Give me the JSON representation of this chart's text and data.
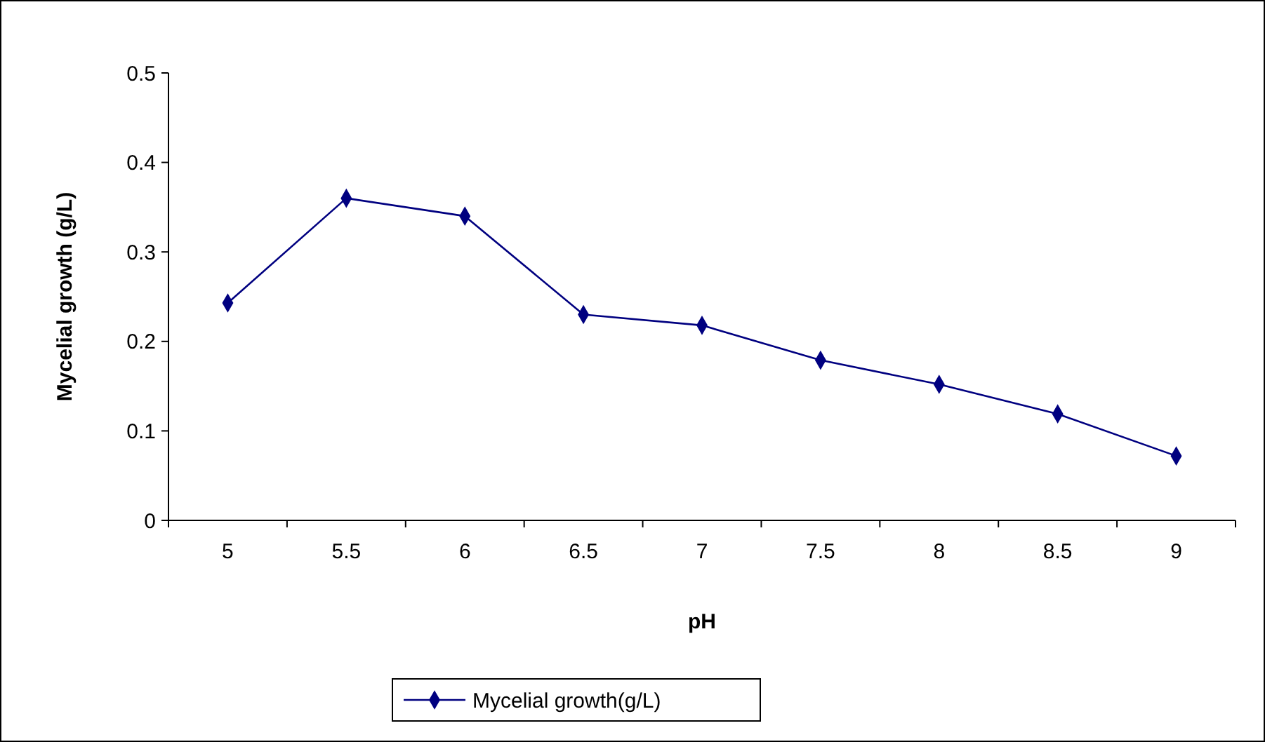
{
  "chart_data": {
    "type": "line",
    "xlabel": "pH",
    "ylabel": "Mycelial growth (g/L)",
    "categories": [
      "5",
      "5.5",
      "6",
      "6.5",
      "7",
      "7.5",
      "8",
      "8.5",
      "9"
    ],
    "series": [
      {
        "name": "Mycelial growth(g/L)",
        "color": "#000080",
        "values": [
          0.243,
          0.36,
          0.34,
          0.23,
          0.218,
          0.179,
          0.152,
          0.119,
          0.072
        ]
      }
    ],
    "ylim": [
      0,
      0.5
    ],
    "yticks": [
      0,
      0.1,
      0.2,
      0.3,
      0.4,
      0.5
    ],
    "grid": false,
    "legend": "bottom",
    "marker": "diamond",
    "line_style": "solid"
  }
}
